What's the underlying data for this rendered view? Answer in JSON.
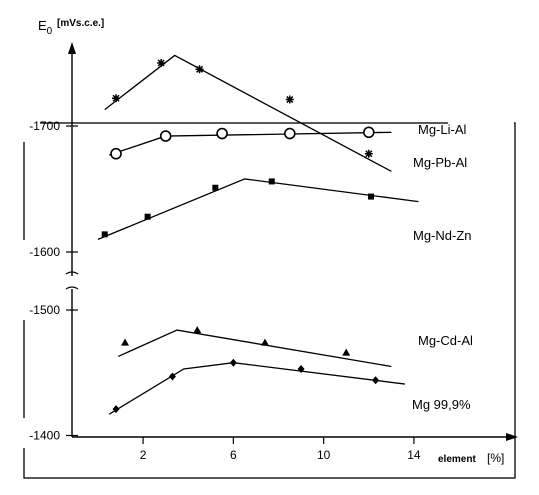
{
  "chart_data": {
    "type": "line",
    "ylabel_symbol": "E",
    "ylabel_subscript": "0",
    "ylabel_unit": "[mVs.c.e.]",
    "xlabel": "element",
    "xlabel_unit": "[%]",
    "x_ticks": [
      2,
      6,
      10,
      14
    ],
    "y_ticks_upper": [
      -1700,
      -1600
    ],
    "y_ticks_lower": [
      -1500,
      -1400
    ],
    "y_break": true,
    "xlim": [
      0,
      15.5
    ],
    "series": [
      {
        "name": "Mg-Li-Al",
        "marker": "circle-open",
        "points": [
          [
            0.8,
            -1678
          ],
          [
            3,
            -1692
          ],
          [
            5.5,
            -1694
          ],
          [
            8.5,
            -1694
          ],
          [
            12,
            -1695
          ]
        ],
        "trend": [
          [
            0.5,
            -1677
          ],
          [
            3,
            -1692
          ],
          [
            13,
            -1695
          ]
        ]
      },
      {
        "name": "Mg-Pb-Al",
        "marker": "star",
        "points": [
          [
            0.8,
            -1722
          ],
          [
            2.8,
            -1750
          ],
          [
            4.5,
            -1745
          ],
          [
            8.5,
            -1721
          ],
          [
            12,
            -1678
          ]
        ],
        "trend": [
          [
            0.3,
            -1713
          ],
          [
            3.4,
            -1756
          ],
          [
            13,
            -1664
          ]
        ]
      },
      {
        "name": "Mg-Nd-Zn",
        "marker": "square-filled",
        "points": [
          [
            0.3,
            -1614
          ],
          [
            2.2,
            -1628
          ],
          [
            5.2,
            -1651
          ],
          [
            7.7,
            -1656
          ],
          [
            12.1,
            -1644
          ]
        ],
        "trend": [
          [
            0,
            -1610
          ],
          [
            6.5,
            -1658
          ],
          [
            14.2,
            -1640
          ]
        ]
      },
      {
        "name": "Mg-Cd-Al",
        "marker": "triangle-filled",
        "points": [
          [
            1.2,
            -1474
          ],
          [
            4.4,
            -1484
          ],
          [
            7.4,
            -1474
          ],
          [
            11,
            -1466
          ]
        ],
        "trend": [
          [
            0.9,
            -1463
          ],
          [
            3.5,
            -1484
          ],
          [
            13,
            -1455
          ]
        ]
      },
      {
        "name": "Mg 99,9%",
        "marker": "diamond-filled",
        "points": [
          [
            0.8,
            -1421
          ],
          [
            3.3,
            -1447
          ],
          [
            6,
            -1458
          ],
          [
            9,
            -1453
          ],
          [
            12.3,
            -1444
          ]
        ],
        "trend": [
          [
            0.5,
            -1417
          ],
          [
            3.8,
            -1453
          ],
          [
            6,
            -1458
          ],
          [
            13.6,
            -1441
          ]
        ]
      }
    ]
  }
}
